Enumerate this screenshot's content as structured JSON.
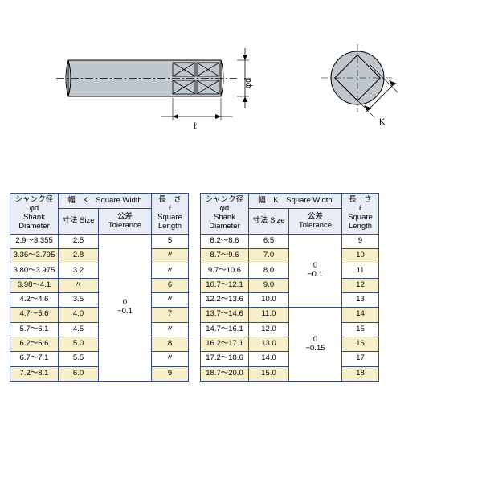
{
  "diagram": {
    "labels": {
      "phi_d": "φd",
      "ell": "ℓ",
      "K": "K"
    },
    "colors": {
      "stroke": "#000000",
      "fill_shank": "#bfc6cc",
      "hatch": "#8a8a8a",
      "dim_line": "#000000"
    }
  },
  "header": {
    "shank_jp": "シャンク径φd",
    "shank_en1": "Shank",
    "shank_en2": "Diameter",
    "width_jp": "幅　K　Square Width",
    "size_jp": "寸法 Size",
    "tol_jp": "公差 Tolerance",
    "len_jp1": "長　さ　ℓ",
    "len_en1": "Square",
    "len_en2": "Length"
  },
  "tolerances": {
    "left_all": "0\n−0.1",
    "right_top": "0\n−0.1",
    "right_bottom": "0\n−0.15"
  },
  "left_table": [
    {
      "shank": "2.9～3.355",
      "size": "2.5",
      "len": "5"
    },
    {
      "shank": "3.36～3.795",
      "size": "2.8",
      "len": "〃"
    },
    {
      "shank": "3.80～3.975",
      "size": "3.2",
      "len": "〃"
    },
    {
      "shank": "3.98～4.1",
      "size": "〃",
      "len": "6"
    },
    {
      "shank": "4.2～4.6",
      "size": "3.5",
      "len": "〃"
    },
    {
      "shank": "4.7～5.6",
      "size": "4.0",
      "len": "7"
    },
    {
      "shank": "5.7～6.1",
      "size": "4.5",
      "len": "〃"
    },
    {
      "shank": "6.2～6.6",
      "size": "5.0",
      "len": "8"
    },
    {
      "shank": "6.7～7.1",
      "size": "5.5",
      "len": "〃"
    },
    {
      "shank": "7.2～8.1",
      "size": "6.0",
      "len": "9"
    }
  ],
  "right_table": [
    {
      "shank": "8.2～8.6",
      "size": "6.5",
      "len": "9"
    },
    {
      "shank": "8.7～9.6",
      "size": "7.0",
      "len": "10"
    },
    {
      "shank": "9.7～10.6",
      "size": "8.0",
      "len": "11"
    },
    {
      "shank": "10.7～12.1",
      "size": "9.0",
      "len": "12"
    },
    {
      "shank": "12.2～13.6",
      "size": "10.0",
      "len": "13"
    },
    {
      "shank": "13.7～14.6",
      "size": "11.0",
      "len": "14"
    },
    {
      "shank": "14.7～16.1",
      "size": "12.0",
      "len": "15"
    },
    {
      "shank": "16.2～17.1",
      "size": "13.0",
      "len": "16"
    },
    {
      "shank": "17.2～18.6",
      "size": "14.0",
      "len": "17"
    },
    {
      "shank": "18.7～20.0",
      "size": "15.0",
      "len": "18"
    }
  ],
  "right_tolerance_split": 5
}
